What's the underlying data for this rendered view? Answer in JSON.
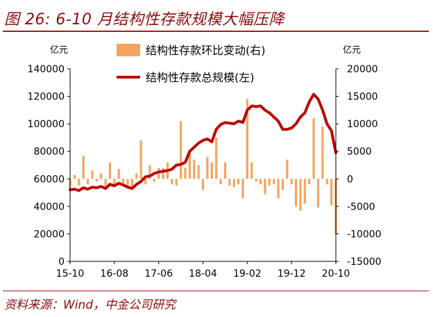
{
  "header": {
    "title": "图 26: 6-10 月结构性存款规模大幅压降"
  },
  "footer": {
    "source": "资料来源：Wind，中金公司研究"
  },
  "colors": {
    "title": "#8B0D0D",
    "line": "#C00000",
    "bar": "#F4A460",
    "axis": "#000000"
  },
  "chart_data": {
    "type": "bar+line",
    "title": "图 26: 6-10 月结构性存款规模大幅压降",
    "y_left_unit": "亿元",
    "y_right_unit": "亿元",
    "y_left_range": [
      0,
      140000
    ],
    "y_right_range": [
      -15000,
      20000
    ],
    "y_left_ticks": [
      "0",
      "20000",
      "40000",
      "60000",
      "80000",
      "100000",
      "120000",
      "140000"
    ],
    "y_right_ticks": [
      "-15000",
      "-10000",
      "-5000",
      "0",
      "5000",
      "10000",
      "15000",
      "20000"
    ],
    "x_tick_labels": [
      "15-10",
      "16-08",
      "17-06",
      "18-04",
      "19-02",
      "19-12",
      "20-10"
    ],
    "x_tick_index": [
      0,
      10,
      20,
      30,
      40,
      50,
      60
    ],
    "x": [
      "2015-10",
      "2015-11",
      "2015-12",
      "2016-01",
      "2016-02",
      "2016-03",
      "2016-04",
      "2016-05",
      "2016-06",
      "2016-07",
      "2016-08",
      "2016-09",
      "2016-10",
      "2016-11",
      "2016-12",
      "2017-01",
      "2017-02",
      "2017-03",
      "2017-04",
      "2017-05",
      "2017-06",
      "2017-07",
      "2017-08",
      "2017-09",
      "2017-10",
      "2017-11",
      "2017-12",
      "2018-01",
      "2018-02",
      "2018-03",
      "2018-04",
      "2018-05",
      "2018-06",
      "2018-07",
      "2018-08",
      "2018-09",
      "2018-10",
      "2018-11",
      "2018-12",
      "2019-01",
      "2019-02",
      "2019-03",
      "2019-04",
      "2019-05",
      "2019-06",
      "2019-07",
      "2019-08",
      "2019-09",
      "2019-10",
      "2019-11",
      "2019-12",
      "2020-01",
      "2020-02",
      "2020-03",
      "2020-04",
      "2020-05",
      "2020-06",
      "2020-07",
      "2020-08",
      "2020-09",
      "2020-10"
    ],
    "series": [
      {
        "name": "结构性存款环比变动(右)",
        "type": "bar",
        "axis": "right",
        "values": [
          -2000,
          700,
          -1200,
          4200,
          -1000,
          1500,
          -500,
          1000,
          -1300,
          3000,
          -1200,
          1800,
          -1300,
          -1200,
          -1600,
          1000,
          7000,
          -1000,
          2500,
          -500,
          2000,
          2000,
          3000,
          -1000,
          -1200,
          10500,
          2000,
          4500,
          3500,
          2500,
          -2000,
          4000,
          3000,
          7500,
          -1000,
          3000,
          -1200,
          -1500,
          -1000,
          -3500,
          14500,
          3000,
          -500,
          -1000,
          -2800,
          -1200,
          -1000,
          -3500,
          -2000,
          3500,
          -1000,
          -5000,
          -5800,
          -4500,
          -1000,
          11000,
          -5200,
          9500,
          -1000,
          -4800,
          -10000
        ]
      },
      {
        "name": "结构性存款总规模(左)",
        "type": "line",
        "axis": "left",
        "values": [
          52000,
          52500,
          51500,
          53500,
          52500,
          54000,
          53500,
          54500,
          53000,
          56000,
          55000,
          56800,
          55500,
          54000,
          53000,
          56000,
          58000,
          61500,
          62000,
          64000,
          65000,
          65500,
          66000,
          67000,
          70000,
          70500,
          72000,
          80000,
          83000,
          86000,
          88000,
          89000,
          87000,
          96000,
          99500,
          101000,
          100500,
          100000,
          102000,
          101000,
          110000,
          113000,
          112500,
          113000,
          110000,
          108000,
          105000,
          102000,
          96000,
          96000,
          97000,
          100000,
          105000,
          108000,
          116000,
          121500,
          118000,
          110000,
          100000,
          95000,
          79000
        ]
      }
    ]
  }
}
